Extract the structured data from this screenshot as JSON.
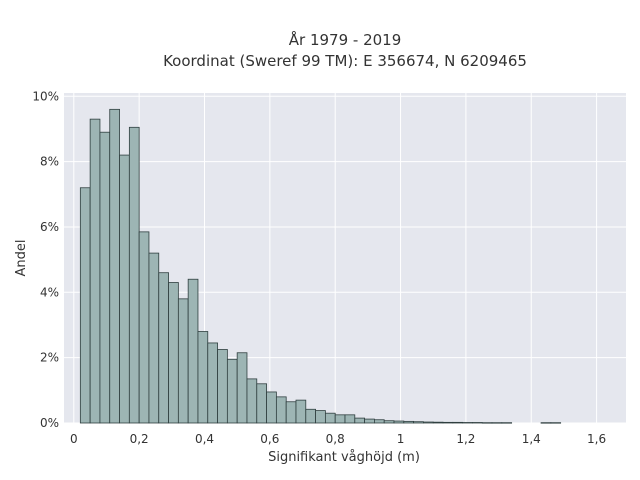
{
  "chart_data": {
    "type": "bar",
    "title": [
      "År 1979 - 2019",
      "Koordinat (Sweref 99 TM): E 356674, N 6209465"
    ],
    "xlabel": "Signifikant våghöjd (m)",
    "ylabel": "Andel",
    "bin_width": 0.03,
    "bins_start": [
      0.02,
      0.05,
      0.08,
      0.11,
      0.14,
      0.17,
      0.2,
      0.23,
      0.26,
      0.29,
      0.32,
      0.35,
      0.38,
      0.41,
      0.44,
      0.47,
      0.5,
      0.53,
      0.56,
      0.59,
      0.62,
      0.65,
      0.68,
      0.71,
      0.74,
      0.77,
      0.8,
      0.83,
      0.86,
      0.89,
      0.92,
      0.95,
      0.98,
      1.01,
      1.04,
      1.07,
      1.1,
      1.13,
      1.16,
      1.19,
      1.22,
      1.25,
      1.28,
      1.31,
      1.34,
      1.37,
      1.4,
      1.43,
      1.46
    ],
    "values": [
      7.2,
      9.3,
      8.9,
      9.6,
      8.2,
      9.05,
      5.85,
      5.2,
      4.6,
      4.3,
      3.8,
      4.4,
      2.8,
      2.45,
      2.25,
      1.95,
      2.15,
      1.35,
      1.2,
      0.95,
      0.8,
      0.65,
      0.7,
      0.42,
      0.38,
      0.3,
      0.25,
      0.25,
      0.15,
      0.12,
      0.1,
      0.07,
      0.06,
      0.05,
      0.04,
      0.03,
      0.025,
      0.02,
      0.02,
      0.015,
      0.015,
      0.01,
      0.01,
      0.01,
      0.0,
      0.0,
      0.0,
      0.01,
      0.01
    ],
    "xlim": [
      -0.03,
      1.69
    ],
    "ylim": [
      0,
      10.1
    ],
    "xticks": [
      0,
      0.2,
      0.4,
      0.6,
      0.8,
      1.0,
      1.2,
      1.4,
      1.6
    ],
    "xtick_labels": [
      "0",
      "0,2",
      "0,4",
      "0,6",
      "0,8",
      "1",
      "1,2",
      "1,4",
      "1,6"
    ],
    "yticks": [
      0,
      2,
      4,
      6,
      8,
      10
    ],
    "ytick_labels": [
      "0%",
      "2%",
      "4%",
      "6%",
      "8%",
      "10%"
    ],
    "grid": true,
    "colors": {
      "bar_fill": "#9db5b4",
      "bar_stroke": "#2f3f3f",
      "plot_bg": "#e5e7ee",
      "grid": "#ffffff"
    }
  }
}
